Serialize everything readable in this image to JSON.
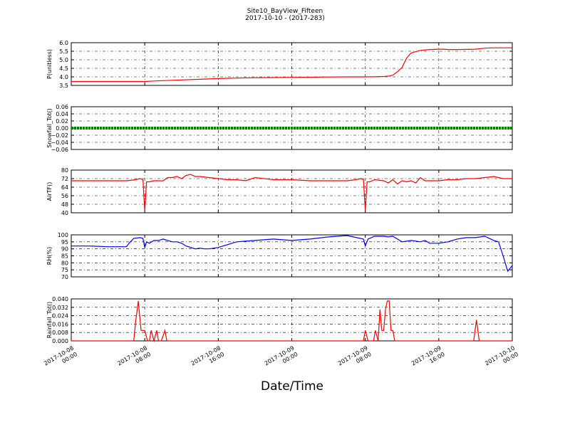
{
  "figure": {
    "title": "Site10_BayView_Fifteen",
    "subtitle": "2017-10-10 - (2017-283)",
    "xlabel": "Date/Time",
    "x_ticks": [
      "2017-10-08\n00:00",
      "2017-10-08\n08:00",
      "2017-10-08\n16:00",
      "2017-10-09\n00:00",
      "2017-10-09\n08:00",
      "2017-10-09\n16:00",
      "2017-10-10\n00:00"
    ]
  },
  "chart_data": [
    {
      "type": "line",
      "ylabel": "P(unitless)",
      "ylim": [
        3.5,
        6.0
      ],
      "yticks": [
        "3.5",
        "4.0",
        "4.5",
        "5.0",
        "5.5",
        "6.0"
      ],
      "grid": true,
      "color": "#ff0000",
      "x_range_hours": [
        0,
        48
      ],
      "x": [
        0,
        4,
        6,
        8,
        9,
        10,
        11,
        12,
        14,
        16,
        18,
        20,
        22,
        24,
        26,
        28,
        30,
        32,
        33,
        34,
        34.6,
        35,
        35.5,
        36,
        36.5,
        37,
        38,
        39,
        40,
        40.5,
        41,
        42,
        44,
        45,
        46,
        48
      ],
      "y": [
        3.73,
        3.73,
        3.73,
        3.73,
        3.76,
        3.78,
        3.8,
        3.82,
        3.86,
        3.9,
        3.93,
        3.95,
        3.96,
        3.97,
        3.98,
        3.99,
        4.0,
        4.0,
        4.01,
        4.02,
        4.05,
        4.1,
        4.3,
        4.55,
        5.1,
        5.4,
        5.55,
        5.6,
        5.62,
        5.62,
        5.6,
        5.6,
        5.62,
        5.68,
        5.7,
        5.7
      ]
    },
    {
      "type": "line",
      "ylabel": "Snowfall_Tot()",
      "ylim": [
        -0.06,
        0.06
      ],
      "yticks": [
        "−0.06",
        "−0.04",
        "−0.02",
        "0.00",
        "0.02",
        "0.04",
        "0.06"
      ],
      "grid": true,
      "color": "#008000",
      "x": [
        0,
        48
      ],
      "y": [
        0.0,
        0.0
      ]
    },
    {
      "type": "line",
      "ylabel": "AirTF()",
      "ylim": [
        40,
        80
      ],
      "yticks": [
        "40",
        "48",
        "56",
        "64",
        "72",
        "80"
      ],
      "grid": true,
      "color": "#ff0000",
      "x": [
        0,
        2,
        4,
        6,
        7,
        7.5,
        7.8,
        8.0,
        8.2,
        8.5,
        9,
        10,
        10.5,
        11,
        11.5,
        12,
        12.5,
        13,
        13.5,
        14,
        15,
        16,
        17,
        18,
        19,
        20,
        22,
        24,
        26,
        28,
        30,
        31,
        31.5,
        31.8,
        32.0,
        32.2,
        32.5,
        33,
        34,
        34.5,
        35,
        35.5,
        36,
        36.5,
        37,
        37.5,
        38,
        38.5,
        39,
        40,
        41,
        42,
        43,
        44,
        45,
        46,
        47,
        48
      ],
      "y": [
        70,
        70,
        70,
        70,
        71,
        72,
        71,
        42,
        69,
        69,
        70,
        70,
        73,
        73,
        74,
        72,
        75,
        76,
        74,
        74,
        73,
        72,
        71,
        71,
        70,
        73,
        71,
        71,
        70,
        70,
        70,
        71,
        72,
        71,
        42,
        69,
        69,
        71,
        70,
        68,
        71,
        67,
        70,
        69,
        70,
        68,
        73,
        70,
        70,
        70,
        71,
        71,
        72,
        72,
        73,
        74,
        72,
        72
      ]
    },
    {
      "type": "line",
      "ylabel": "RH(%)",
      "ylim": [
        70,
        100
      ],
      "yticks": [
        "70",
        "75",
        "80",
        "85",
        "90",
        "95",
        "100"
      ],
      "grid": true,
      "color": "#0000ff",
      "x": [
        0,
        2,
        4,
        6,
        6.3,
        6.8,
        7.5,
        7.8,
        8.0,
        8.2,
        8.5,
        9,
        9.5,
        10,
        10.5,
        11,
        11.5,
        12,
        12.5,
        13,
        13.5,
        14,
        14.5,
        15,
        16,
        17,
        18,
        20,
        22,
        24,
        26,
        28,
        30,
        31.8,
        32.0,
        32.3,
        33,
        34,
        34.5,
        35,
        35.5,
        36,
        37,
        38,
        38.5,
        39,
        39.5,
        40,
        41,
        42,
        43,
        44,
        45,
        46,
        46.5,
        47,
        47.5,
        48
      ],
      "y": [
        92,
        92,
        91.5,
        91.5,
        94,
        97.5,
        98,
        97.5,
        91,
        95,
        94,
        96,
        96,
        97,
        96,
        95,
        95,
        94,
        92,
        91,
        90,
        90.5,
        90,
        90,
        91,
        93,
        95,
        96,
        97,
        96,
        97,
        98.5,
        99.5,
        97,
        92,
        97,
        99,
        99,
        98.5,
        99,
        97,
        95,
        96,
        95,
        96,
        94,
        94,
        94,
        95,
        97,
        98,
        98,
        99,
        96,
        95,
        85,
        74,
        78
      ]
    },
    {
      "type": "line",
      "ylabel": "Rainfall_Tot()",
      "ylim": [
        0.0,
        0.04
      ],
      "yticks": [
        "0.000",
        "0.008",
        "0.016",
        "0.024",
        "0.032",
        "0.040"
      ],
      "grid": true,
      "color": "#ff0000",
      "x": [
        0,
        6,
        6.5,
        6.8,
        7.0,
        7.3,
        7.6,
        8.0,
        8.3,
        8.5,
        8.7,
        9.0,
        9.3,
        9.5,
        9.8,
        10.2,
        10.4,
        10.6,
        10.9,
        11.2,
        12,
        31,
        31.8,
        32.0,
        32.3,
        32.6,
        32.9,
        33.1,
        33.4,
        33.6,
        33.8,
        34.0,
        34.2,
        34.4,
        34.6,
        34.8,
        35.0,
        35.2,
        35.5,
        35.8,
        36,
        43.5,
        43.8,
        44.1,
        44.4,
        48
      ],
      "y": [
        0,
        0,
        0,
        0,
        0.018,
        0.038,
        0.01,
        0.01,
        0,
        0,
        0.01,
        0,
        0.01,
        0,
        0,
        0.01,
        0,
        0,
        0,
        0,
        0,
        0,
        0,
        0.01,
        0,
        0,
        0,
        0.01,
        0,
        0.03,
        0.01,
        0.01,
        0.03,
        0.038,
        0.038,
        0.01,
        0.01,
        0,
        0,
        0,
        0,
        0,
        0,
        0.02,
        0,
        0
      ]
    }
  ]
}
